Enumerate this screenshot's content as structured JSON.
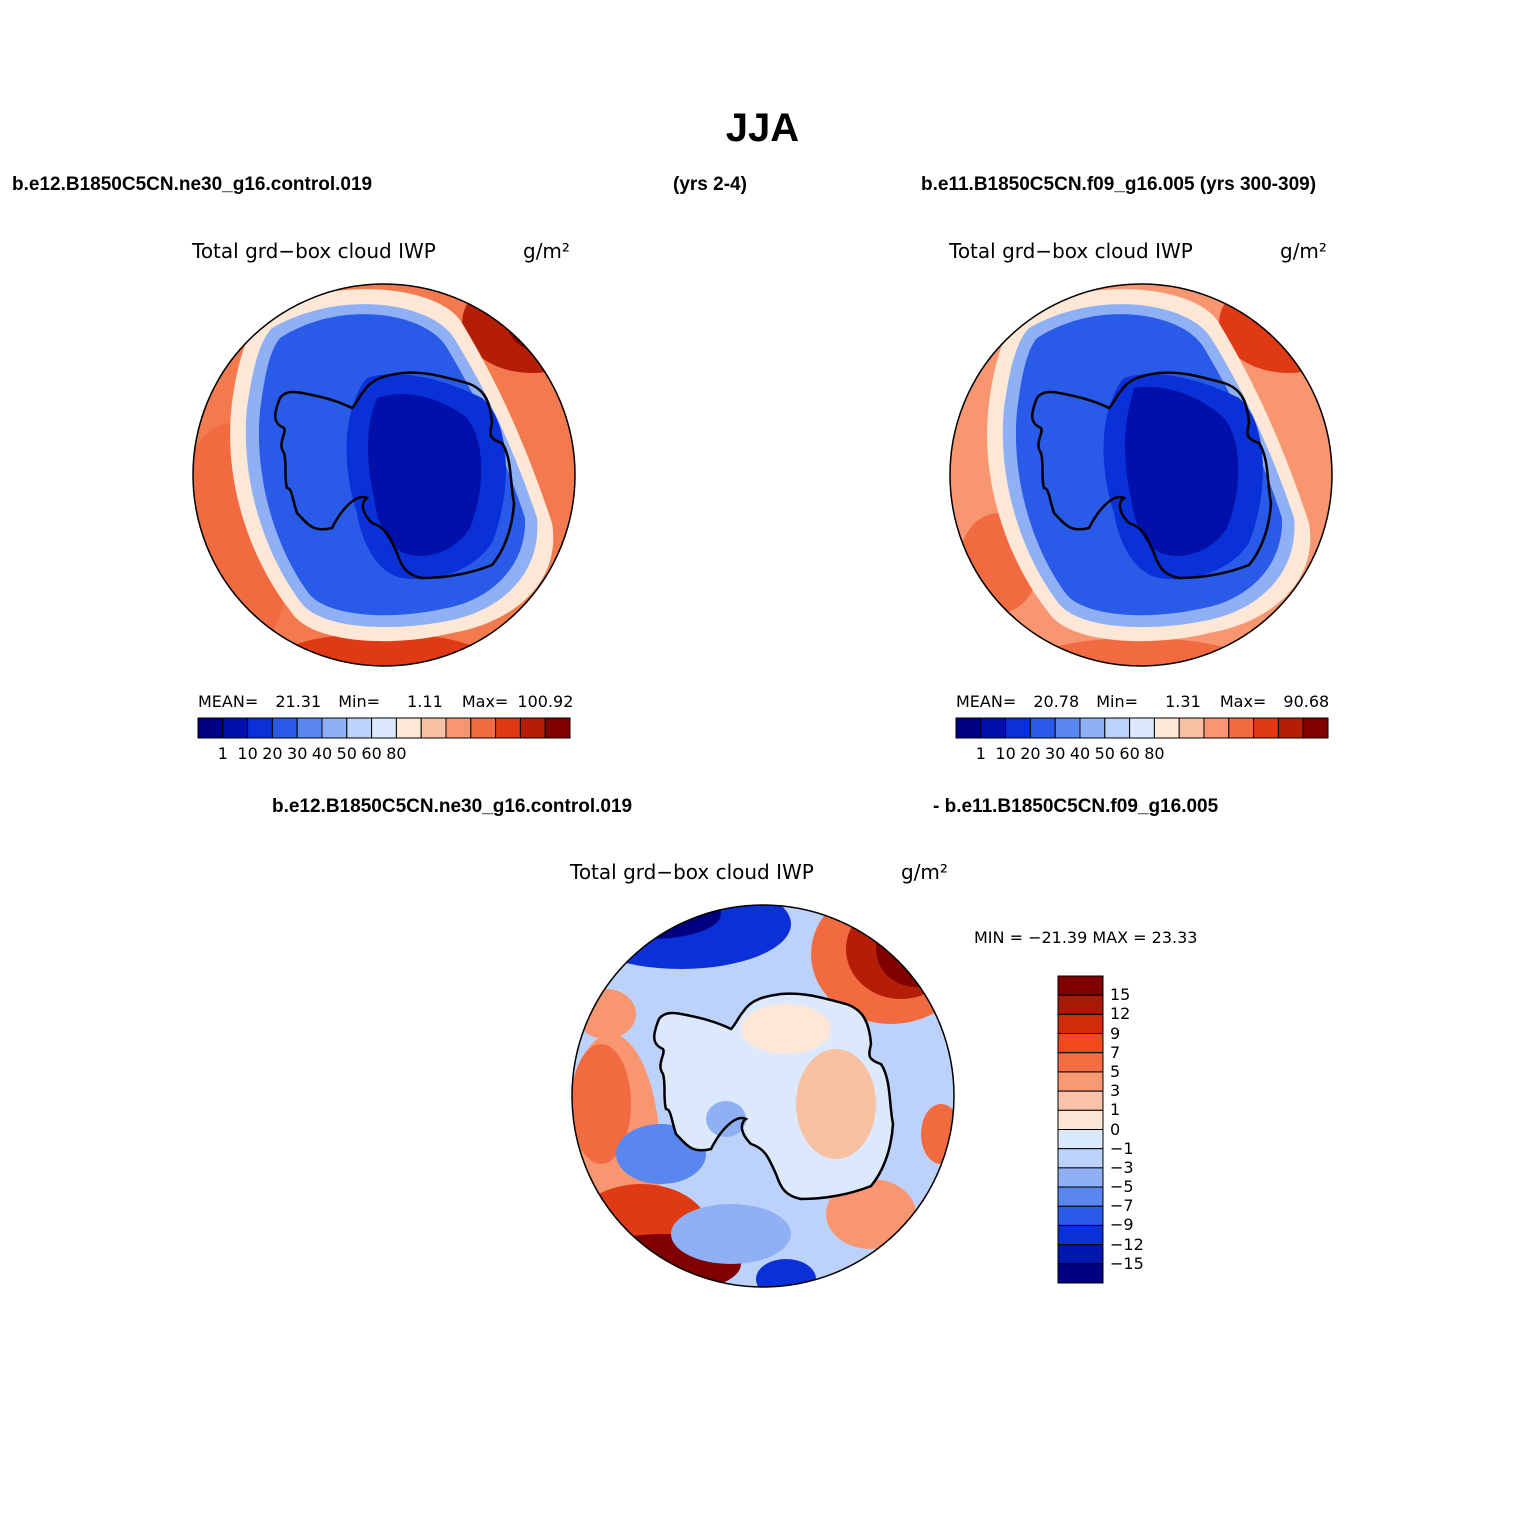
{
  "page_title": "JJA",
  "case_header": {
    "left": "b.e12.B1850C5CN.ne30_g16.control.019",
    "middle": "(yrs 2-4)",
    "right": "b.e11.B1850C5CN.f09_g16.005 (yrs 300-309)"
  },
  "diff_header": {
    "left": "b.e12.B1850C5CN.ne30_g16.control.019",
    "right": "- b.e11.B1850C5CN.f09_g16.005"
  },
  "panels": {
    "test": {
      "variable": "Total grd−box cloud IWP",
      "units": "g/m²",
      "mean_label": "MEAN=",
      "mean": "21.31",
      "min_label": "Min=",
      "min": "1.11",
      "max_label": "Max=",
      "max": "100.92"
    },
    "control": {
      "variable": "Total grd−box cloud IWP",
      "units": "g/m²",
      "mean_label": "MEAN=",
      "mean": "20.78",
      "min_label": "Min=",
      "min": "1.31",
      "max_label": "Max=",
      "max": "90.68"
    },
    "difference": {
      "variable": "Total grd−box cloud IWP",
      "units": "g/m²",
      "range_text": "MIN = −21.39 MAX =  23.33"
    }
  },
  "horizontal_colorbar": {
    "colors": [
      "#000080",
      "#0010a8",
      "#0a30d8",
      "#2a5ae8",
      "#5a86f0",
      "#8fb0f5",
      "#bcd2fa",
      "#dce9fc",
      "#fde8d8",
      "#fac0a4",
      "#f79670",
      "#f26a40",
      "#e03a14",
      "#b41e06",
      "#800000"
    ],
    "tick_labels": [
      "1",
      "10",
      "20",
      "30",
      "40",
      "50",
      "60",
      "80"
    ]
  },
  "vertical_colorbar": {
    "colors_top_to_bottom": [
      "#800000",
      "#a81a04",
      "#d02c0a",
      "#f04a1c",
      "#f36e42",
      "#f69a74",
      "#f8c3a8",
      "#fde6d6",
      "#dbe9fc",
      "#bbd2fa",
      "#8fb0f5",
      "#5a86f0",
      "#2a5ae8",
      "#0a30d8",
      "#0018b0",
      "#000080"
    ],
    "tick_labels": [
      "15",
      "12",
      "9",
      "7",
      "5",
      "3",
      "1",
      "0",
      "−1",
      "−3",
      "−5",
      "−7",
      "−9",
      "−12",
      "−15"
    ]
  },
  "colors": {
    "ocean_high": "#c41a04",
    "ocean_mid": "#f27a4e",
    "ice_low": "#0a2fb8",
    "ice_mid": "#2a5ae8",
    "coastline": "#000000"
  }
}
